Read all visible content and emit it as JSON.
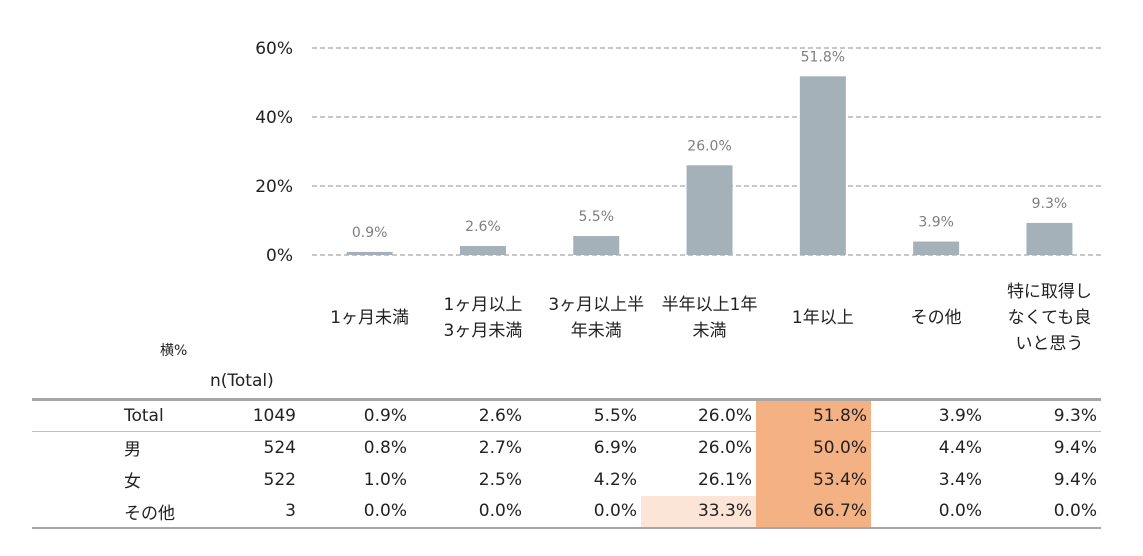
{
  "chart_data": {
    "type": "bar",
    "categories": [
      [
        "1ヶ月未満"
      ],
      [
        "1ヶ月以上",
        "3ヶ月未満"
      ],
      [
        "3ヶ月以上半",
        "年未満"
      ],
      [
        "半年以上1年",
        "未満"
      ],
      [
        "1年以上"
      ],
      [
        "その他"
      ],
      [
        "特に取得し",
        "なくても良",
        "いと思う"
      ]
    ],
    "values": [
      0.9,
      2.6,
      5.5,
      26.0,
      51.8,
      3.9,
      9.3
    ],
    "data_labels": [
      "0.9%",
      "2.6%",
      "5.5%",
      "26.0%",
      "51.8%",
      "3.9%",
      "9.3%"
    ],
    "ylim": [
      0,
      60
    ],
    "yticks": [
      "0%",
      "20%",
      "40%",
      "60%"
    ],
    "ytick_values": [
      0,
      20,
      40,
      60
    ],
    "grid": true,
    "bar_color": "#a5b1b9"
  },
  "table": {
    "side_label": "横%",
    "n_header": "n(Total)",
    "highlight_strong": "#f4b183",
    "highlight_light": "#fce4d6",
    "rows": [
      {
        "label": "Total",
        "n": "1049",
        "values": [
          "0.9%",
          "2.6%",
          "5.5%",
          "26.0%",
          "51.8%",
          "3.9%",
          "9.3%"
        ],
        "highlight": [
          0,
          0,
          0,
          0,
          2,
          0,
          0
        ]
      },
      {
        "label": "男",
        "n": "524",
        "values": [
          "0.8%",
          "2.7%",
          "6.9%",
          "26.0%",
          "50.0%",
          "4.4%",
          "9.4%"
        ],
        "highlight": [
          0,
          0,
          0,
          0,
          2,
          0,
          0
        ]
      },
      {
        "label": "女",
        "n": "522",
        "values": [
          "1.0%",
          "2.5%",
          "4.2%",
          "26.1%",
          "53.4%",
          "3.4%",
          "9.4%"
        ],
        "highlight": [
          0,
          0,
          0,
          0,
          2,
          0,
          0
        ]
      },
      {
        "label": "その他",
        "n": "3",
        "values": [
          "0.0%",
          "0.0%",
          "0.0%",
          "33.3%",
          "66.7%",
          "0.0%",
          "0.0%"
        ],
        "highlight": [
          0,
          0,
          0,
          1,
          2,
          0,
          0
        ]
      }
    ]
  }
}
